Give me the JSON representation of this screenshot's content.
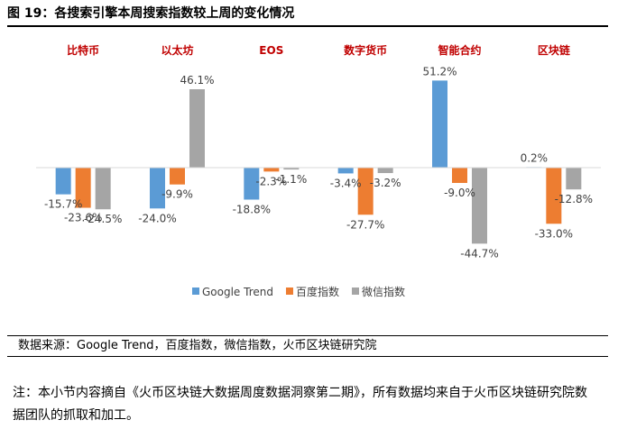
{
  "figure": {
    "title": "图 19：各搜索引擎本周搜索指数较上周的变化情况",
    "source": "数据来源：Google Trend，百度指数，微信指数，火币区块链研究院",
    "note": "注：本小节内容摘自《火币区块链大数据周度数据洞察第二期》，所有数据均来自于火币区块链研究院数据团队的抓取和加工。"
  },
  "chart_data": {
    "type": "bar",
    "categories": [
      "比特币",
      "以太坊",
      "EOS",
      "数字货币",
      "智能合约",
      "区块链"
    ],
    "category_color": "#C00000",
    "series": [
      {
        "name": "Google Trend",
        "color": "#5B9BD5",
        "values": [
          -15.7,
          -24.0,
          -18.8,
          -3.4,
          51.2,
          0.2
        ]
      },
      {
        "name": "百度指数",
        "color": "#ED7D31",
        "values": [
          -23.6,
          -9.9,
          -2.3,
          -27.7,
          -9.0,
          -33.0
        ]
      },
      {
        "name": "微信指数",
        "color": "#A5A5A5",
        "values": [
          -24.5,
          46.1,
          -1.1,
          -3.2,
          -44.7,
          -12.8
        ]
      }
    ],
    "value_format": "percent_1dp",
    "grid": false,
    "legend": "bottom"
  }
}
